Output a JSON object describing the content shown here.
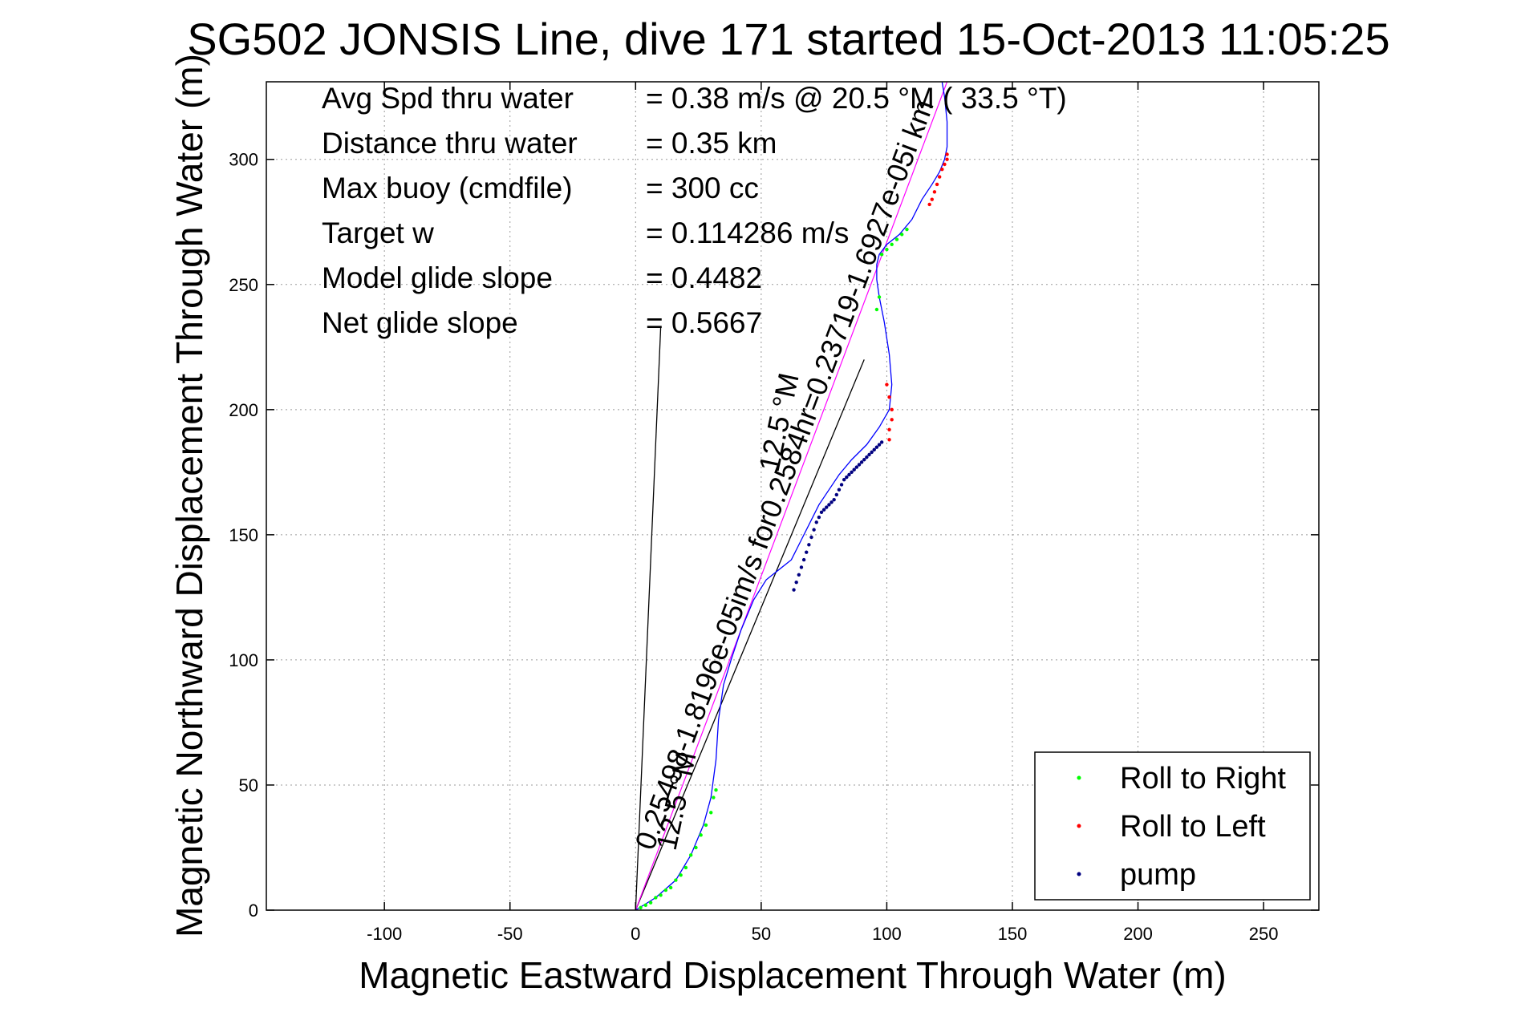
{
  "chart_data": {
    "type": "line",
    "title": "SG502 JONSIS Line, dive 171 started 15-Oct-2013 11:05:25",
    "xlabel": "Magnetic Eastward Displacement Through Water (m)",
    "ylabel": "Magnetic Northward Displacement Through Water (m)",
    "xlim": [
      -147,
      272
    ],
    "ylim": [
      0,
      331
    ],
    "xticks": [
      -100,
      -50,
      0,
      50,
      100,
      150,
      200,
      250
    ],
    "yticks": [
      0,
      50,
      100,
      150,
      200,
      250,
      300
    ],
    "grid": true,
    "stats": [
      {
        "label": "Avg Spd thru water",
        "value": "=  0.38 m/s @  20.5 °M ( 33.5 °T)"
      },
      {
        "label": "Distance thru water",
        "value": "=  0.35 km"
      },
      {
        "label": "Max buoy (cmdfile)",
        "value": "= 300 cc"
      },
      {
        "label": "Target w",
        "value": "= 0.114286 m/s"
      },
      {
        "label": "Model glide slope",
        "value": "= 0.4482"
      },
      {
        "label": "Net glide slope",
        "value": "= 0.5667"
      }
    ],
    "rotated_annotations": [
      "0.25498-1.8196e-05im/s for0.2584hr=0.23719-1.6927e-05i km",
      "12.5 °M",
      "12.5 °M"
    ],
    "track": {
      "name": "track",
      "color": "#0000ff",
      "x": [
        0,
        8,
        16,
        22,
        27,
        30,
        32,
        33,
        35,
        38,
        42,
        47,
        52,
        57,
        62,
        66,
        70,
        73,
        77,
        81,
        86,
        92,
        97,
        101,
        102,
        101,
        99,
        97,
        96,
        96,
        97,
        100,
        105,
        110,
        114,
        118,
        121,
        123,
        124,
        124,
        123,
        122
      ],
      "y": [
        0,
        5,
        12,
        22,
        34,
        45,
        60,
        76,
        90,
        100,
        112,
        124,
        132,
        136,
        140,
        148,
        156,
        162,
        168,
        174,
        180,
        186,
        193,
        200,
        210,
        222,
        235,
        245,
        252,
        258,
        262,
        266,
        270,
        276,
        284,
        290,
        295,
        300,
        305,
        315,
        325,
        331
      ]
    },
    "current_line": {
      "name": "current",
      "color": "#ff00ff",
      "x": [
        0,
        124
      ],
      "y": [
        0,
        331
      ]
    },
    "heading_lines": [
      {
        "x": [
          0,
          10
        ],
        "y": [
          0,
          233
        ]
      },
      {
        "x": [
          0,
          91
        ],
        "y": [
          0,
          220
        ]
      }
    ],
    "series": [
      {
        "name": "Roll to Right",
        "color": "#00ff00",
        "x": [
          2,
          4,
          6,
          8,
          10,
          12,
          14,
          16,
          18,
          20,
          22,
          24,
          26,
          28,
          30,
          31,
          32,
          98,
          100,
          102,
          104,
          106,
          108,
          97,
          96
        ],
        "y": [
          1,
          2,
          3,
          5,
          6,
          8,
          9,
          12,
          14,
          17,
          22,
          25,
          30,
          34,
          39,
          45,
          48,
          262,
          264,
          266,
          268,
          270,
          272,
          245,
          240
        ]
      },
      {
        "name": "Roll to Left",
        "color": "#ff0000",
        "x": [
          101,
          101,
          102,
          102,
          101,
          100,
          117,
          118,
          119,
          120,
          121,
          122,
          123,
          124,
          124
        ],
        "y": [
          188,
          192,
          196,
          200,
          205,
          210,
          282,
          284,
          287,
          290,
          293,
          296,
          298,
          300,
          302
        ]
      },
      {
        "name": "pump",
        "color": "#000080",
        "x": [
          63,
          64,
          65,
          66,
          67,
          68,
          69,
          70,
          71,
          72,
          73,
          74,
          75,
          76,
          77,
          78,
          79,
          80,
          81,
          82,
          83,
          84,
          85,
          86,
          87,
          88,
          89,
          90,
          91,
          92,
          93,
          94,
          95,
          96,
          97,
          98
        ],
        "y": [
          128,
          131,
          134,
          137,
          140,
          143,
          146,
          149,
          152,
          155,
          157,
          159,
          160,
          161,
          162,
          163,
          164,
          166,
          168,
          170,
          172,
          173,
          174,
          175,
          176,
          177,
          178,
          179,
          180,
          181,
          182,
          183,
          184,
          185,
          186,
          187
        ]
      }
    ],
    "legend_position": "bottom-right"
  }
}
